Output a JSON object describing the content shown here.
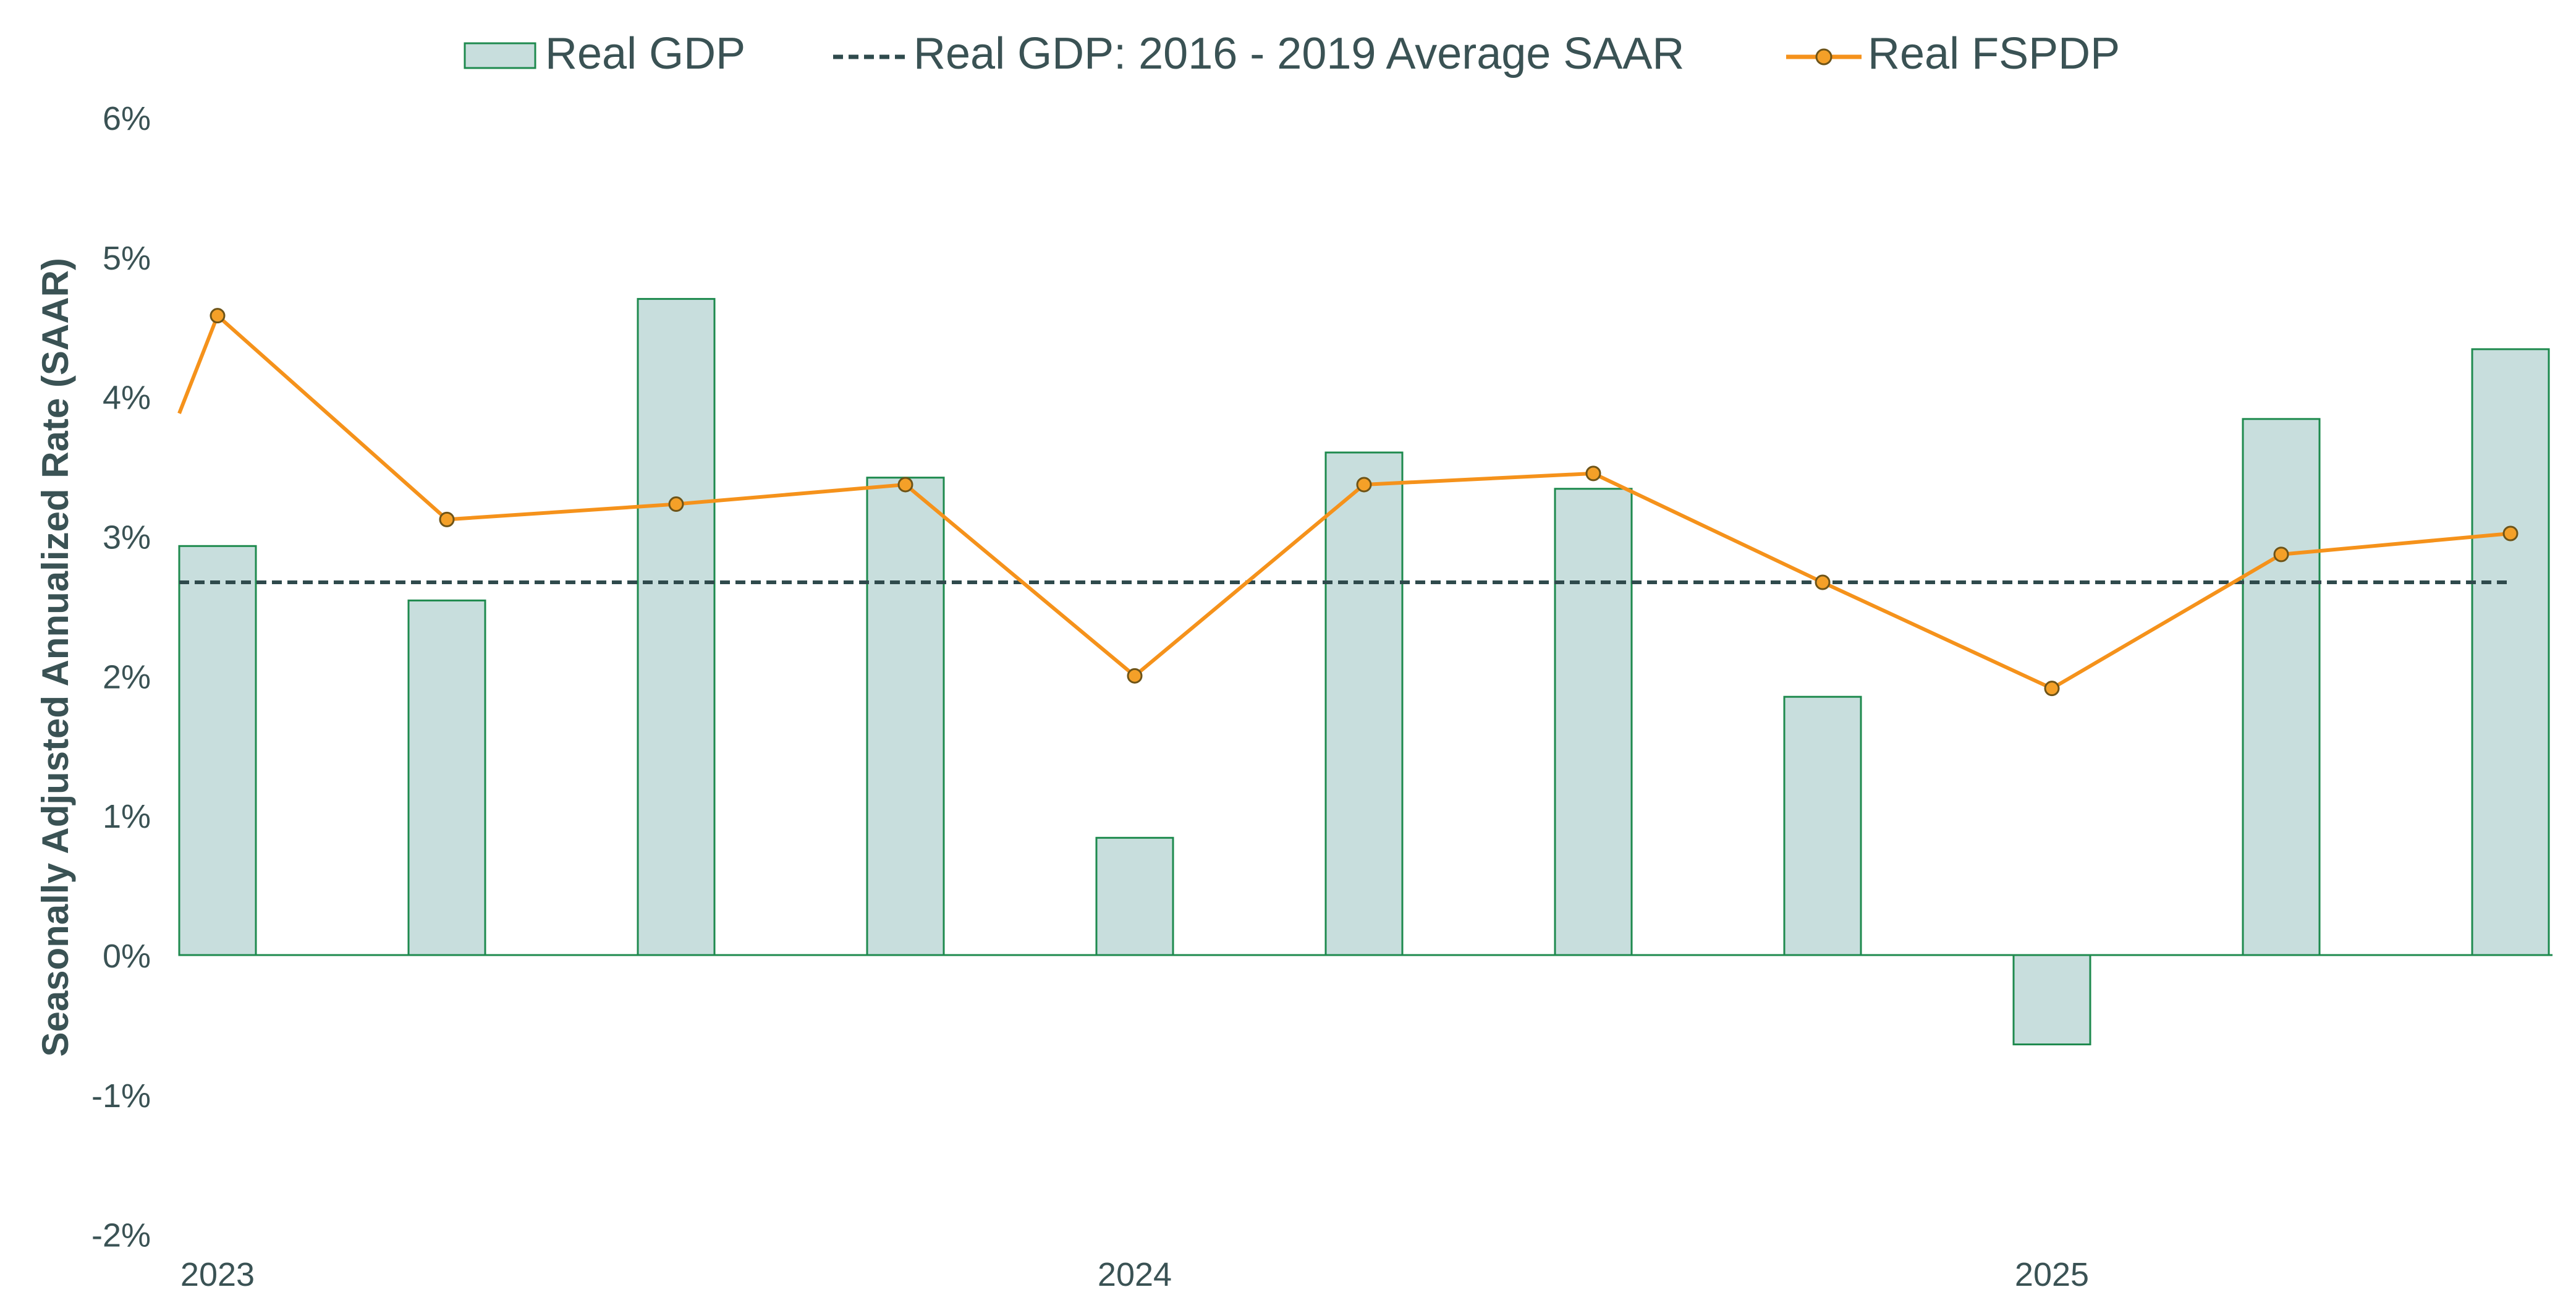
{
  "chart_data": {
    "type": "bar",
    "title": "",
    "xlabel": "",
    "ylabel": "Seasonally Adjusted Annualized Rate (SAAR)",
    "ylim": [
      -2,
      6
    ],
    "yticks": [
      6,
      5,
      4,
      3,
      2,
      1,
      0,
      -1,
      -2
    ],
    "ytick_labels": [
      "6%",
      "5%",
      "4%",
      "3%",
      "2%",
      "1%",
      "0%",
      "-1%",
      "-2%"
    ],
    "x_year_labels": [
      "2023",
      "2024",
      "2025"
    ],
    "legend": {
      "position": "top-center",
      "entries": [
        "Real GDP",
        "Real GDP: 2016 - 2019 Average SAAR",
        "Real FSPDP"
      ]
    },
    "series": [
      {
        "name": "Real GDP",
        "kind": "bar",
        "values": [
          2.93,
          2.54,
          4.7,
          3.42,
          0.84,
          3.6,
          3.34,
          1.85,
          -0.64,
          3.84,
          4.34
        ]
      },
      {
        "name": "Real GDP: 2016 - 2019 Average SAAR",
        "kind": "hline",
        "value": 2.67
      },
      {
        "name": "Real FSPDP",
        "kind": "line",
        "values": [
          4.58,
          3.12,
          3.23,
          3.37,
          2.0,
          3.37,
          3.45,
          2.67,
          1.91,
          2.87,
          3.02
        ],
        "start_value": 3.88
      }
    ],
    "colors": {
      "bar_fill": "#c8dedd",
      "bar_stroke": "#1e8a4e",
      "avg_line": "#2f4a4c",
      "fspdp_line": "#f5921b",
      "fspdp_marker_fill": "#f4a028",
      "fspdp_marker_stroke": "#6e5418",
      "text": "#3a5254",
      "axis": "#1e8a4e"
    }
  }
}
